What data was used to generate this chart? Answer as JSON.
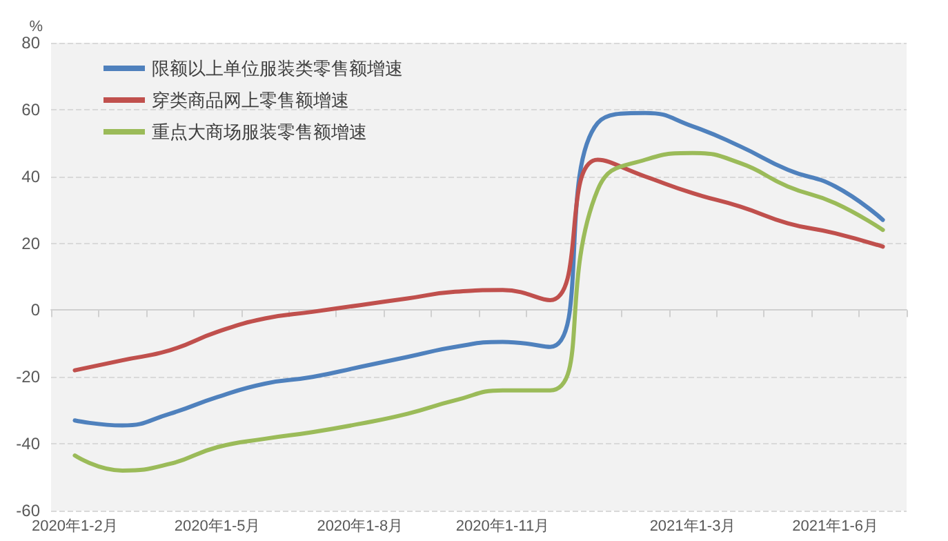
{
  "chart_data": {
    "type": "line",
    "ylabel": "%",
    "categories": [
      "2020年1-2月",
      null,
      null,
      "2020年1-5月",
      null,
      null,
      "2020年1-8月",
      null,
      null,
      "2020年1-11月",
      null,
      null,
      null,
      "2021年1-3月",
      null,
      null,
      "2021年1-6月",
      null
    ],
    "series": [
      {
        "name": "限额以上单位服装类零售额增速",
        "color": "#4f81bd",
        "values": [
          -33,
          -34.5,
          -31,
          -26,
          -22,
          -20,
          -17,
          -14,
          -11,
          -9.5,
          -11,
          56,
          59,
          55,
          49,
          42,
          37,
          27
        ]
      },
      {
        "name": "穿类商品网上零售额增速",
        "color": "#c0504d",
        "values": [
          -18,
          -15,
          -12,
          -6.5,
          -2.5,
          -0.5,
          1.5,
          3.5,
          5.5,
          6,
          3,
          45,
          40,
          35,
          31,
          26,
          23,
          19
        ]
      },
      {
        "name": "重点大商场服装零售额增速",
        "color": "#9bbb59",
        "values": [
          -43.5,
          -48,
          -46,
          -41,
          -38.5,
          -36.5,
          -34,
          -31,
          -27,
          -24,
          -24,
          36,
          45,
          47,
          44,
          37,
          32,
          24
        ]
      }
    ],
    "ylim": [
      -60,
      80
    ],
    "yticks": [
      -60,
      -40,
      -20,
      0,
      20,
      40,
      60,
      80
    ],
    "grid": "y",
    "legend": "top left",
    "marker": "none",
    "line_style": "solid"
  }
}
